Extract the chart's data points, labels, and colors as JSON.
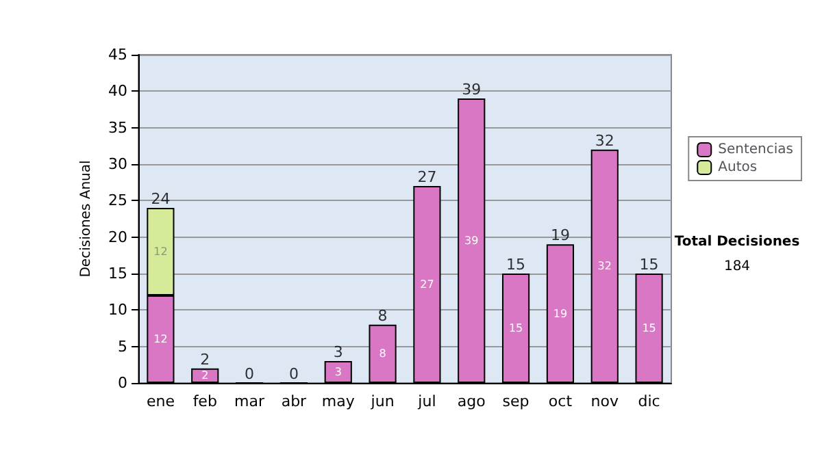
{
  "chart_data": {
    "type": "bar",
    "stacked": true,
    "ylabel": "Decisiones Anual",
    "categories": [
      "ene",
      "feb",
      "mar",
      "abr",
      "may",
      "jun",
      "jul",
      "ago",
      "sep",
      "oct",
      "nov",
      "dic"
    ],
    "series": [
      {
        "name": "Sentencias",
        "color": "#d977c4",
        "values": [
          12,
          2,
          0,
          0,
          3,
          8,
          27,
          39,
          15,
          19,
          32,
          15
        ],
        "value_labels": [
          "12",
          "2",
          null,
          null,
          "3",
          "8",
          "27",
          "39",
          "15",
          "19",
          "32",
          "15"
        ]
      },
      {
        "name": "Autos",
        "color": "#d5eb9a",
        "values": [
          12,
          null,
          null,
          null,
          null,
          null,
          null,
          null,
          null,
          null,
          null,
          null
        ],
        "value_labels": [
          "12",
          null,
          null,
          null,
          null,
          null,
          null,
          null,
          null,
          null,
          null,
          null
        ]
      }
    ],
    "totals": [
      "24",
      "2",
      "0",
      "0",
      "3",
      "8",
      "27",
      "39",
      "15",
      "19",
      "32",
      "15"
    ],
    "ylim": [
      0,
      45
    ],
    "yticks": [
      0,
      5,
      10,
      15,
      20,
      25,
      30,
      35,
      40,
      45
    ],
    "grid": "y",
    "legend": "right",
    "annotations": [
      "Total Decisiones",
      "184"
    ]
  }
}
